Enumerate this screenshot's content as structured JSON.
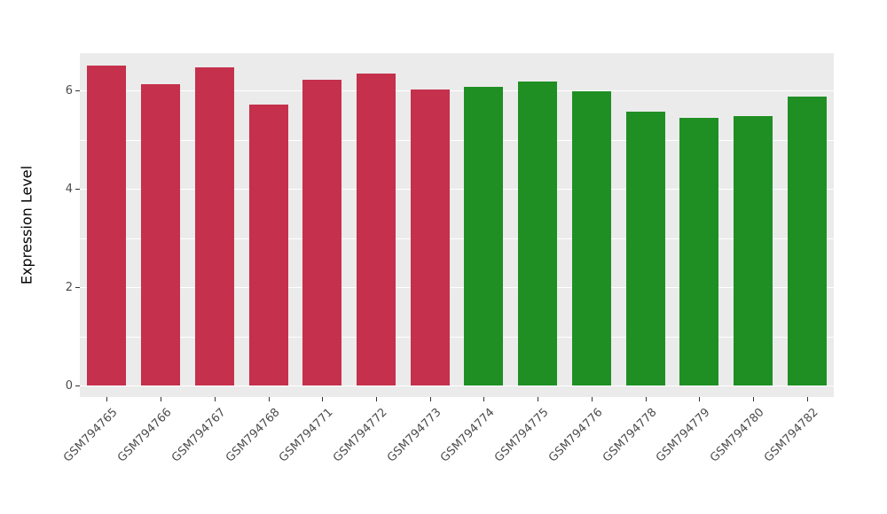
{
  "chart_data": {
    "type": "bar",
    "title": "",
    "xlabel": "",
    "ylabel": "Expression Level",
    "categories": [
      "GSM794765",
      "GSM794766",
      "GSM794767",
      "GSM794768",
      "GSM794771",
      "GSM794772",
      "GSM794773",
      "GSM794774",
      "GSM794775",
      "GSM794776",
      "GSM794778",
      "GSM794779",
      "GSM794780",
      "GSM794782"
    ],
    "values": [
      6.5,
      6.12,
      6.47,
      5.72,
      6.22,
      6.35,
      6.01,
      6.07,
      6.18,
      5.98,
      5.57,
      5.45,
      5.48,
      5.88
    ],
    "bar_colors": [
      "#C5304C",
      "#C5304C",
      "#C5304C",
      "#C5304C",
      "#C5304C",
      "#C5304C",
      "#C5304C",
      "#1F8F24",
      "#1F8F24",
      "#1F8F24",
      "#1F8F24",
      "#1F8F24",
      "#1F8F24",
      "#1F8F24"
    ],
    "group_colors": {
      "group1": "#C5304C",
      "group2": "#1F8F24"
    },
    "ylim": [
      0,
      6.7
    ],
    "yticks": [
      0,
      2,
      4,
      6
    ],
    "minor_yticks": [
      1,
      3,
      5
    ],
    "grid": "on",
    "legend": "none",
    "panel_background": "#EBEBEB"
  }
}
